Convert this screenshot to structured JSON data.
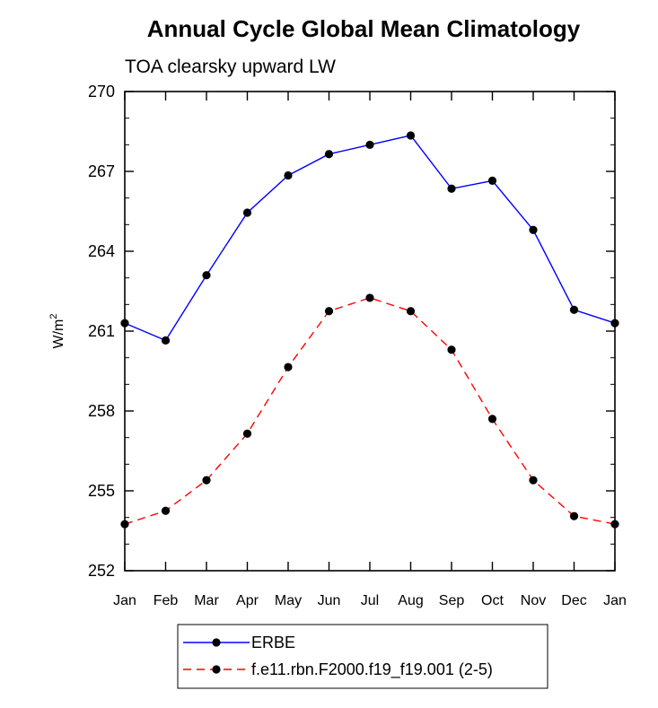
{
  "chart_data": {
    "type": "line",
    "title": "Annual Cycle Global Mean Climatology",
    "subtitle": "TOA clearsky upward LW",
    "xlabel": "",
    "ylabel": "W/m",
    "ylabel_superscript": "2",
    "categories": [
      "Jan",
      "Feb",
      "Mar",
      "Apr",
      "May",
      "Jun",
      "Jul",
      "Aug",
      "Sep",
      "Oct",
      "Nov",
      "Dec",
      "Jan"
    ],
    "ylim": [
      252,
      270
    ],
    "yticks": [
      "252",
      "255",
      "258",
      "261",
      "264",
      "267",
      "270"
    ],
    "grid": false,
    "legend_position": "bottom",
    "series": [
      {
        "name": "ERBE",
        "color": "#0000ff",
        "line_style": "solid",
        "marker": "filled-circle",
        "values": [
          261.3,
          260.65,
          263.1,
          265.45,
          266.85,
          267.65,
          268.0,
          268.35,
          266.35,
          266.65,
          264.8,
          261.8,
          261.3
        ]
      },
      {
        "name": "f.e11.rbn.F2000.f19_f19.001 (2-5)",
        "color": "#ff0000",
        "line_style": "dashed",
        "marker": "filled-circle",
        "values": [
          253.75,
          254.25,
          255.4,
          257.15,
          259.65,
          261.75,
          262.25,
          261.75,
          260.3,
          257.7,
          255.4,
          254.05,
          253.75
        ]
      }
    ]
  }
}
